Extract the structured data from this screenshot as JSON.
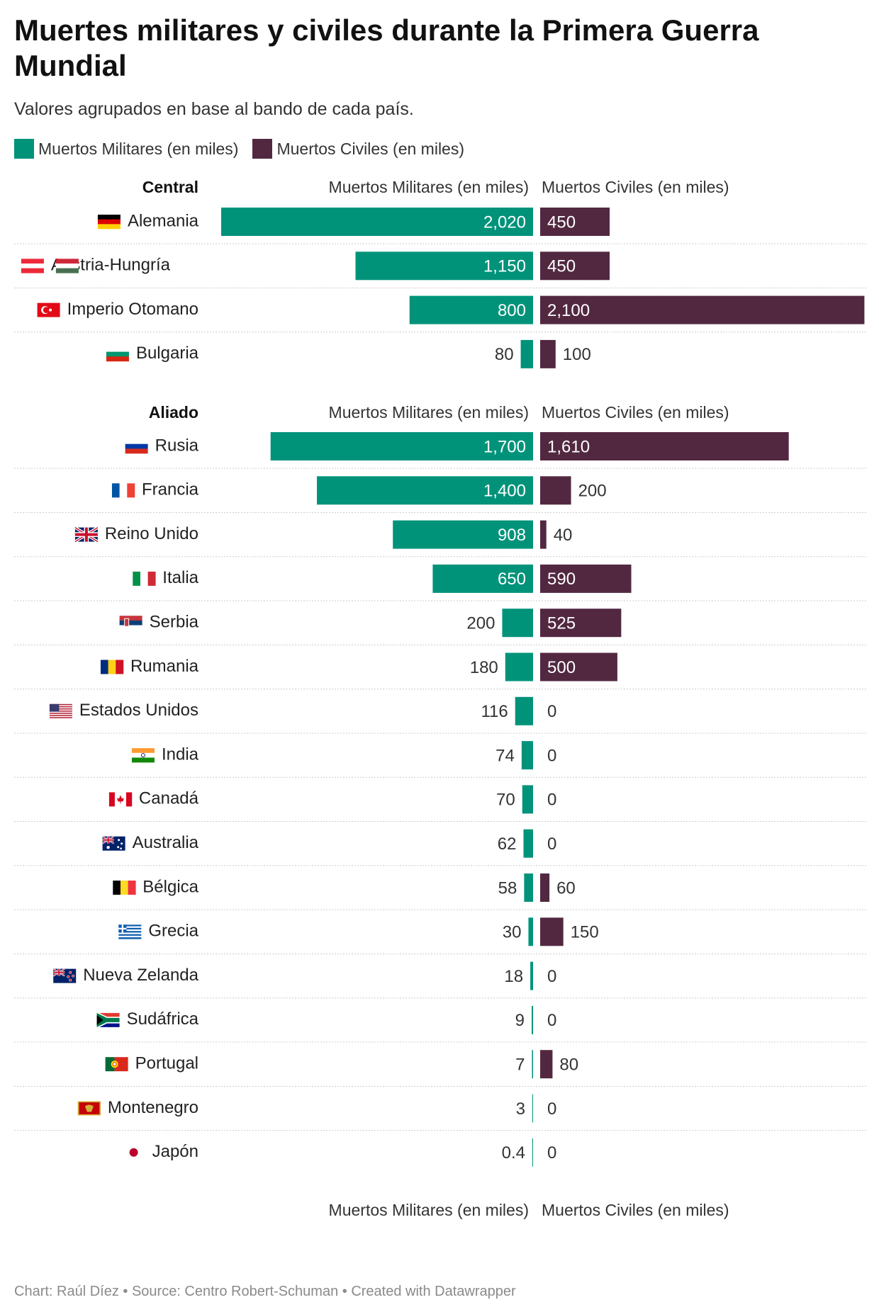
{
  "title": "Muertes militares y civiles durante la Primera Guerra Mundial",
  "subtitle": "Valores agrupados en base al bando de cada país.",
  "footer": "Chart: Raúl Díez • Source: Centro Robert-Schuman • Created with Datawrapper",
  "colors": {
    "military": "#00937a",
    "civilian": "#522841",
    "separator": "#cccccc"
  },
  "chart_data": {
    "type": "bar",
    "series": [
      {
        "name": "Muertos Militares (en miles)",
        "color": "#00937a"
      },
      {
        "name": "Muertos Civiles (en miles)",
        "color": "#522841"
      }
    ],
    "groups": [
      {
        "name": "Central",
        "rows": [
          {
            "country": "Alemania",
            "flag": "germany-flag",
            "military": 2020,
            "military_label": "2,020",
            "civilian": 450,
            "civilian_label": "450"
          },
          {
            "country": "Austria-Hungría",
            "flag": "austria-hungary-flag",
            "military": 1150,
            "military_label": "1,150",
            "civilian": 450,
            "civilian_label": "450"
          },
          {
            "country": "Imperio Otomano",
            "flag": "ottoman-flag",
            "military": 800,
            "military_label": "800",
            "civilian": 2100,
            "civilian_label": "2,100"
          },
          {
            "country": "Bulgaria",
            "flag": "bulgaria-flag",
            "military": 80,
            "military_label": "80",
            "civilian": 100,
            "civilian_label": "100"
          }
        ]
      },
      {
        "name": "Aliado",
        "rows": [
          {
            "country": "Rusia",
            "flag": "russia-flag",
            "military": 1700,
            "military_label": "1,700",
            "civilian": 1610,
            "civilian_label": "1,610"
          },
          {
            "country": "Francia",
            "flag": "france-flag",
            "military": 1400,
            "military_label": "1,400",
            "civilian": 200,
            "civilian_label": "200"
          },
          {
            "country": "Reino Unido",
            "flag": "uk-flag",
            "military": 908,
            "military_label": "908",
            "civilian": 40,
            "civilian_label": "40"
          },
          {
            "country": "Italia",
            "flag": "italy-flag",
            "military": 650,
            "military_label": "650",
            "civilian": 590,
            "civilian_label": "590"
          },
          {
            "country": "Serbia",
            "flag": "serbia-flag",
            "military": 200,
            "military_label": "200",
            "civilian": 525,
            "civilian_label": "525"
          },
          {
            "country": "Rumania",
            "flag": "romania-flag",
            "military": 180,
            "military_label": "180",
            "civilian": 500,
            "civilian_label": "500"
          },
          {
            "country": "Estados Unidos",
            "flag": "usa-flag",
            "military": 116,
            "military_label": "116",
            "civilian": 0,
            "civilian_label": "0"
          },
          {
            "country": "India",
            "flag": "india-flag",
            "military": 74,
            "military_label": "74",
            "civilian": 0,
            "civilian_label": "0"
          },
          {
            "country": "Canadá",
            "flag": "canada-flag",
            "military": 70,
            "military_label": "70",
            "civilian": 0,
            "civilian_label": "0"
          },
          {
            "country": "Australia",
            "flag": "australia-flag",
            "military": 62,
            "military_label": "62",
            "civilian": 0,
            "civilian_label": "0"
          },
          {
            "country": "Bélgica",
            "flag": "belgium-flag",
            "military": 58,
            "military_label": "58",
            "civilian": 60,
            "civilian_label": "60"
          },
          {
            "country": "Grecia",
            "flag": "greece-flag",
            "military": 30,
            "military_label": "30",
            "civilian": 150,
            "civilian_label": "150"
          },
          {
            "country": "Nueva Zelanda",
            "flag": "new-zealand-flag",
            "military": 18,
            "military_label": "18",
            "civilian": 0,
            "civilian_label": "0"
          },
          {
            "country": "Sudáfrica",
            "flag": "south-africa-flag",
            "military": 9,
            "military_label": "9",
            "civilian": 0,
            "civilian_label": "0"
          },
          {
            "country": "Portugal",
            "flag": "portugal-flag",
            "military": 7,
            "military_label": "7",
            "civilian": 80,
            "civilian_label": "80"
          },
          {
            "country": "Montenegro",
            "flag": "montenegro-flag",
            "military": 3,
            "military_label": "3",
            "civilian": 0,
            "civilian_label": "0"
          },
          {
            "country": "Japón",
            "flag": "japan-flag",
            "military": 0.4,
            "military_label": "0.4",
            "civilian": 0,
            "civilian_label": "0"
          }
        ]
      }
    ],
    "xlim_military": [
      0,
      2100
    ],
    "xlim_civilian": [
      0,
      2100
    ],
    "legend": "top-left",
    "grid": false
  }
}
